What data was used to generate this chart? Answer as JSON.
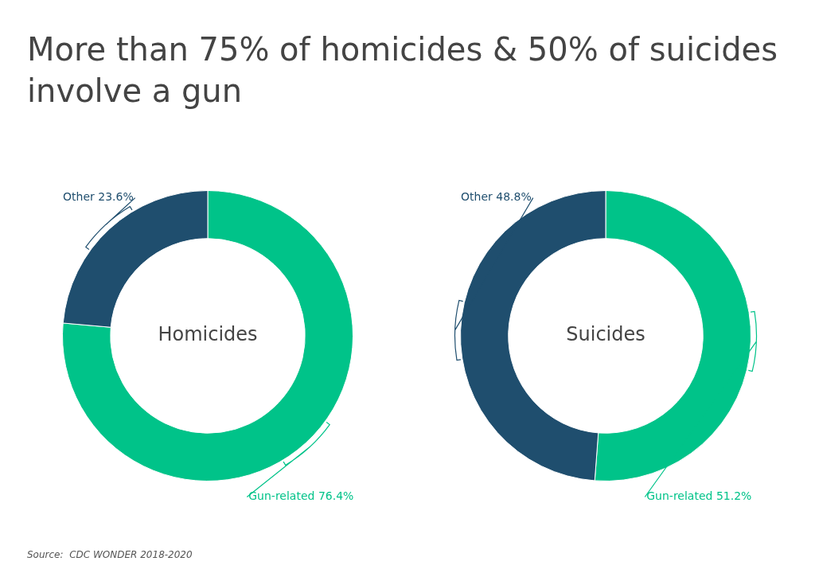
{
  "chart_data": [
    {
      "type": "donut",
      "title": "More than 75% of homicides & 50% of suicides involve a gun",
      "subtitle": "Homicides",
      "categories": [
        "Gun-related",
        "Other"
      ],
      "values": [
        76.4,
        23.6
      ],
      "colors": [
        "#00c389",
        "#1f4e6e"
      ],
      "value_labels": [
        "76.4%",
        "23.6%"
      ],
      "legend": false
    },
    {
      "type": "donut",
      "subtitle": "Suicides",
      "categories": [
        "Gun-related",
        "Other"
      ],
      "values": [
        51.2,
        48.8
      ],
      "colors": [
        "#00c389",
        "#1f4e6e"
      ],
      "value_labels": [
        "51.2%",
        "48.8%"
      ],
      "legend": false,
      "annotations": [
        "Source:  CDC WONDER 2018-2020"
      ]
    }
  ]
}
